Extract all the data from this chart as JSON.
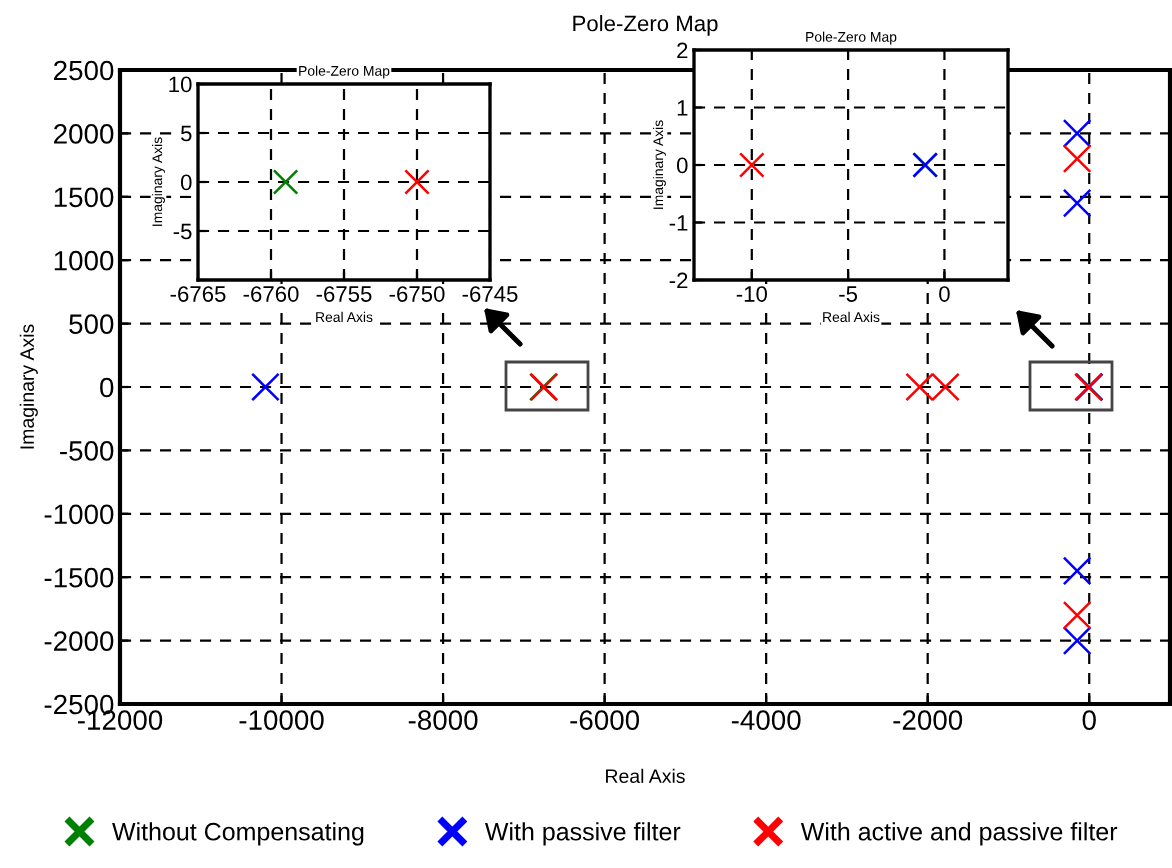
{
  "chart_data": [
    {
      "type": "scatter",
      "title": "Pole-Zero Map",
      "xlabel": "Real Axis",
      "ylabel": "Imaginary Axis",
      "xlim": [
        -12000,
        1000
      ],
      "ylim": [
        -2500,
        2500
      ],
      "xticks": [
        -12000,
        -10000,
        -8000,
        -6000,
        -4000,
        -2000,
        0
      ],
      "yticks": [
        -2500,
        -2000,
        -1500,
        -1000,
        -500,
        0,
        500,
        1000,
        1500,
        2000,
        2500
      ],
      "grid": true,
      "marker": "cross",
      "legend": "bottom",
      "series": [
        {
          "name": "Without Compensating",
          "color": "#008000",
          "x": [
            -6759,
            -1
          ],
          "values": [
            0,
            0
          ]
        },
        {
          "name": "With passive filter",
          "color": "#0000ff",
          "x": [
            -10200,
            -150,
            -150,
            -150,
            -150,
            -1
          ],
          "values": [
            0,
            2000,
            1450,
            -1450,
            -2000,
            0
          ]
        },
        {
          "name": "With active and passive filter",
          "color": "#ff0000",
          "x": [
            -6750,
            -2100,
            -1780,
            -150,
            -150,
            -10
          ],
          "values": [
            0,
            0,
            0,
            1800,
            -1800,
            0
          ]
        }
      ]
    },
    {
      "type": "scatter",
      "title": "Pole-Zero Map",
      "xlabel": "Real Axis",
      "ylabel": "Imaginary Axis",
      "xlim": [
        -6765,
        -6745
      ],
      "ylim": [
        -10,
        10
      ],
      "xticks": [
        -6765,
        -6760,
        -6755,
        -6750,
        -6745
      ],
      "yticks": [
        {
          "value": -10,
          "label": null
        },
        -5,
        0,
        5,
        10
      ],
      "grid": true,
      "marker": "cross",
      "series": [
        {
          "color": "#008000",
          "x": [
            -6759
          ],
          "values": [
            0
          ]
        },
        {
          "color": "#ff0000",
          "x": [
            -6750
          ],
          "values": [
            0
          ]
        }
      ]
    },
    {
      "type": "scatter",
      "title": "Pole-Zero Map",
      "xlabel": "Real Axis",
      "ylabel": "Imaginary Axis",
      "xlim": [
        -13,
        3.3
      ],
      "ylim": [
        -2,
        2
      ],
      "xticks": [
        -10,
        -5,
        0
      ],
      "yticks": [
        -2,
        -1,
        0,
        1,
        2
      ],
      "grid": true,
      "marker": "cross",
      "series": [
        {
          "color": "#008000",
          "x": [
            -1
          ],
          "values": [
            0
          ]
        },
        {
          "color": "#0000ff",
          "x": [
            -1
          ],
          "values": [
            0
          ]
        },
        {
          "color": "#ff0000",
          "x": [
            -10
          ],
          "values": [
            0
          ]
        }
      ]
    }
  ]
}
